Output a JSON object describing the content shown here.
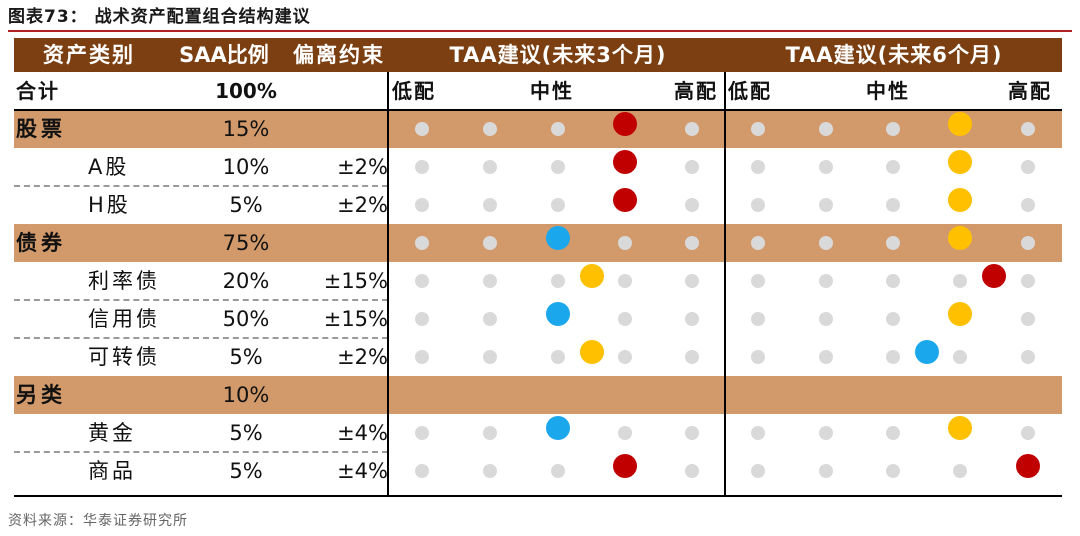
{
  "title": "图表73：  战术资产配置组合结构建议",
  "header": {
    "category": "资产类别",
    "saa_ratio": "SAA比例",
    "deviation": "偏离约束",
    "taa3": "TAA建议(未来3个月)",
    "taa6": "TAA建议(未来6个月)"
  },
  "total": {
    "label": "合计",
    "pct": "100%"
  },
  "scale": {
    "low": "低配",
    "neutral": "中性",
    "high": "高配"
  },
  "colors": {
    "header_bg": "#7b3f12",
    "category_bg": "#d29a6b",
    "red": "#c00000",
    "yellow": "#ffc000",
    "blue": "#1aa7ec",
    "grey_dot": "#d9d9d9",
    "title_rule": "#b22222"
  },
  "rows": [
    {
      "type": "category",
      "name": "股票",
      "pct": "15%",
      "band": "",
      "taa3": {
        "pos": 3,
        "color": "red"
      },
      "taa6": {
        "pos": 3,
        "color": "yellow"
      }
    },
    {
      "type": "sub",
      "name": "A股",
      "pct": "10%",
      "band": "±2%",
      "taa3": {
        "pos": 3,
        "color": "red"
      },
      "taa6": {
        "pos": 3,
        "color": "yellow"
      }
    },
    {
      "type": "sub",
      "name": "H股",
      "pct": "5%",
      "band": "±2%",
      "taa3": {
        "pos": 3,
        "color": "red"
      },
      "taa6": {
        "pos": 3,
        "color": "yellow"
      }
    },
    {
      "type": "category",
      "name": "债券",
      "pct": "75%",
      "band": "",
      "taa3": {
        "pos": 2,
        "color": "blue"
      },
      "taa6": {
        "pos": 3,
        "color": "yellow"
      }
    },
    {
      "type": "sub",
      "name": "利率债",
      "pct": "20%",
      "band": "±15%",
      "taa3": {
        "pos": 2.5,
        "color": "yellow"
      },
      "taa6": {
        "pos": 3.5,
        "color": "red"
      }
    },
    {
      "type": "sub",
      "name": "信用债",
      "pct": "50%",
      "band": "±15%",
      "taa3": {
        "pos": 2,
        "color": "blue"
      },
      "taa6": {
        "pos": 3,
        "color": "yellow"
      }
    },
    {
      "type": "sub",
      "name": "可转债",
      "pct": "5%",
      "band": "±2%",
      "taa3": {
        "pos": 2.5,
        "color": "yellow"
      },
      "taa6": {
        "pos": 2.5,
        "color": "blue"
      }
    },
    {
      "type": "category",
      "name": "另类",
      "pct": "10%",
      "band": "",
      "taa3": null,
      "taa6": null
    },
    {
      "type": "sub",
      "name": "黄金",
      "pct": "5%",
      "band": "±4%",
      "taa3": {
        "pos": 2,
        "color": "blue"
      },
      "taa6": {
        "pos": 3,
        "color": "yellow"
      }
    },
    {
      "type": "sub",
      "name": "商品",
      "pct": "5%",
      "band": "±4%",
      "taa3": {
        "pos": 3,
        "color": "red"
      },
      "taa6": {
        "pos": 4,
        "color": "red"
      }
    }
  ],
  "source": "资料来源：华泰证券研究所"
}
